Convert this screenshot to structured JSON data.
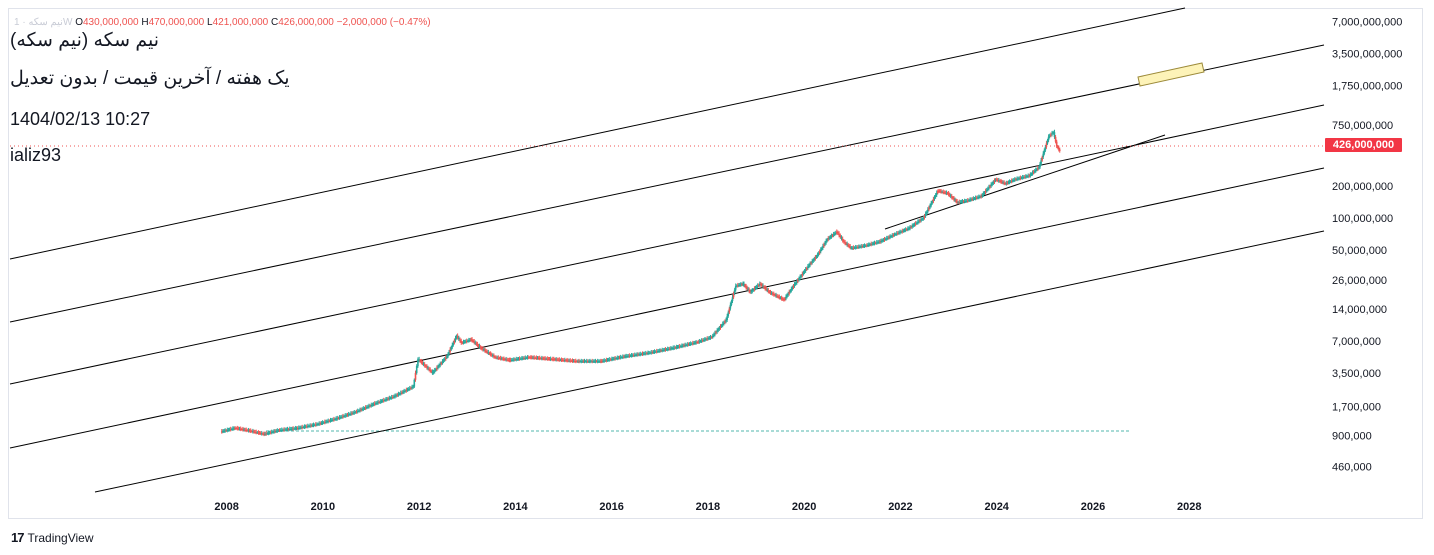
{
  "header": {
    "symbol_faint": "نیم سکه · 1W",
    "open_label": "O",
    "open_value": "430,000,000",
    "high_label": "H",
    "high_value": "470,000,000",
    "low_label": "L",
    "low_value": "421,000,000",
    "close_label": "C",
    "close_value": "426,000,000",
    "change": "−2,000,000 (−0.47%)"
  },
  "annotations": {
    "title": "نیم سکه (نیم سکه)",
    "subtitle": "یک هفته / آخرین قیمت / بدون تعدیل",
    "timestamp": "1404/02/13  10:27",
    "author": "ializ93"
  },
  "price_badge": "426,000,000",
  "brand": {
    "logo": "17",
    "name": "TradingView"
  },
  "colors": {
    "up": "#26a69a",
    "down": "#ef5350",
    "badge": "#f23645",
    "lines": "#000000",
    "highlight": "#fdf3b8"
  },
  "chart_data": {
    "type": "line",
    "scale": "log",
    "title": "",
    "xlabel": "",
    "ylabel": "",
    "xlim": [
      2003.5,
      2030.8
    ],
    "ylim": [
      290000,
      9000000000
    ],
    "x_ticks": [
      "2008",
      "2010",
      "2012",
      "2014",
      "2016",
      "2018",
      "2020",
      "2022",
      "2024",
      "2026",
      "2028"
    ],
    "y_ticks": [
      {
        "value": 7000000000,
        "label": "7,000,000,000"
      },
      {
        "value": 3500000000,
        "label": "3,500,000,000"
      },
      {
        "value": 1750000000,
        "label": "1,750,000,000"
      },
      {
        "value": 750000000,
        "label": "750,000,000"
      },
      {
        "value": 200000000,
        "label": "200,000,000"
      },
      {
        "value": 100000000,
        "label": "100,000,000"
      },
      {
        "value": 50000000,
        "label": "50,000,000"
      },
      {
        "value": 26000000,
        "label": "26,000,000"
      },
      {
        "value": 14000000,
        "label": "14,000,000"
      },
      {
        "value": 7000000,
        "label": "7,000,000"
      },
      {
        "value": 3500000,
        "label": "3,500,000"
      },
      {
        "value": 1700000,
        "label": "1,700,000"
      },
      {
        "value": 900000,
        "label": "900,000"
      },
      {
        "value": 460000,
        "label": "460,000"
      }
    ],
    "series": [
      {
        "x": [
          2007.9,
          2008.2,
          2008.5,
          2008.8,
          2009.1,
          2009.5,
          2009.9,
          2010.3,
          2010.7,
          2011.1,
          2011.5,
          2011.9,
          2012.0,
          2012.3,
          2012.6,
          2012.8,
          2012.9,
          2013.1,
          2013.3,
          2013.6,
          2013.9,
          2014.3,
          2014.8,
          2015.3,
          2015.8,
          2016.3,
          2016.8,
          2017.3,
          2017.8,
          2018.1,
          2018.4,
          2018.6,
          2018.75,
          2018.9,
          2019.1,
          2019.3,
          2019.6,
          2019.8,
          2020.1,
          2020.3,
          2020.5,
          2020.7,
          2020.85,
          2021.0,
          2021.3,
          2021.6,
          2021.9,
          2022.2,
          2022.5,
          2022.8,
          2023.0,
          2023.2,
          2023.4,
          2023.7,
          2024.0,
          2024.2,
          2024.4,
          2024.7,
          2024.9,
          2025.1,
          2025.2,
          2025.27,
          2025.33
        ],
        "values": [
          980000,
          1060000,
          1000000,
          930000,
          1010000,
          1060000,
          1150000,
          1300000,
          1500000,
          1800000,
          2100000,
          2600000,
          4700000,
          3500000,
          5000000,
          7800000,
          6700000,
          7200000,
          6000000,
          4900000,
          4600000,
          4900000,
          4700000,
          4500000,
          4500000,
          5000000,
          5400000,
          6000000,
          6800000,
          7600000,
          11000000,
          23000000,
          24000000,
          20000000,
          24000000,
          20000000,
          17000000,
          23000000,
          35000000,
          45000000,
          63000000,
          74000000,
          59000000,
          52000000,
          55000000,
          60000000,
          70000000,
          80000000,
          100000000,
          180000000,
          170000000,
          140000000,
          145000000,
          160000000,
          230000000,
          210000000,
          230000000,
          250000000,
          300000000,
          580000000,
          640000000,
          470000000,
          426000000
        ]
      }
    ]
  }
}
